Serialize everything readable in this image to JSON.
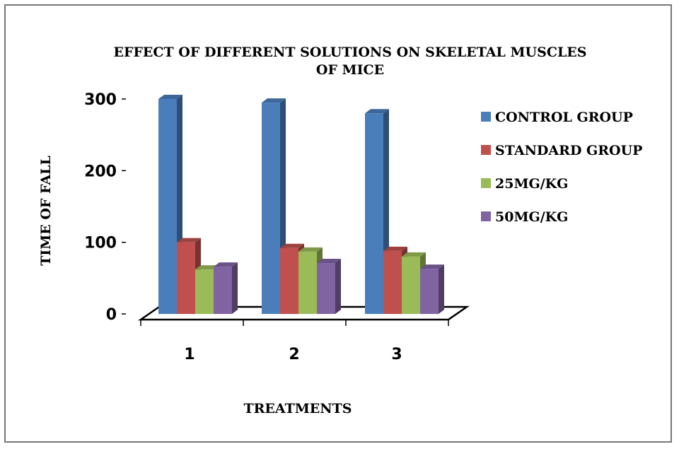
{
  "chart_data": {
    "type": "bar",
    "title_lines": [
      "EFFECT OF DIFFERENT SOLUTIONS ON SKELETAL MUSCLES",
      "OF MICE"
    ],
    "xlabel": "TREATMENTS",
    "ylabel": "TIME OF FALL",
    "categories": [
      "1",
      "2",
      "3"
    ],
    "ylim": [
      0,
      300
    ],
    "yticks": [
      "0",
      "100",
      "200",
      "300"
    ],
    "legend_position": "right",
    "grid": false,
    "series": [
      {
        "name": "CONTROL GROUP",
        "color": "#4a7ebb",
        "values": [
          300,
          295,
          280
        ]
      },
      {
        "name": "STANDARD GROUP",
        "color": "#c0504d",
        "values": [
          100,
          92,
          88
        ]
      },
      {
        "name": "25MG/KG",
        "color": "#9bbb59",
        "values": [
          62,
          87,
          80
        ]
      },
      {
        "name": "50MG/KG",
        "color": "#8064a2",
        "values": [
          66,
          71,
          63
        ]
      }
    ]
  }
}
